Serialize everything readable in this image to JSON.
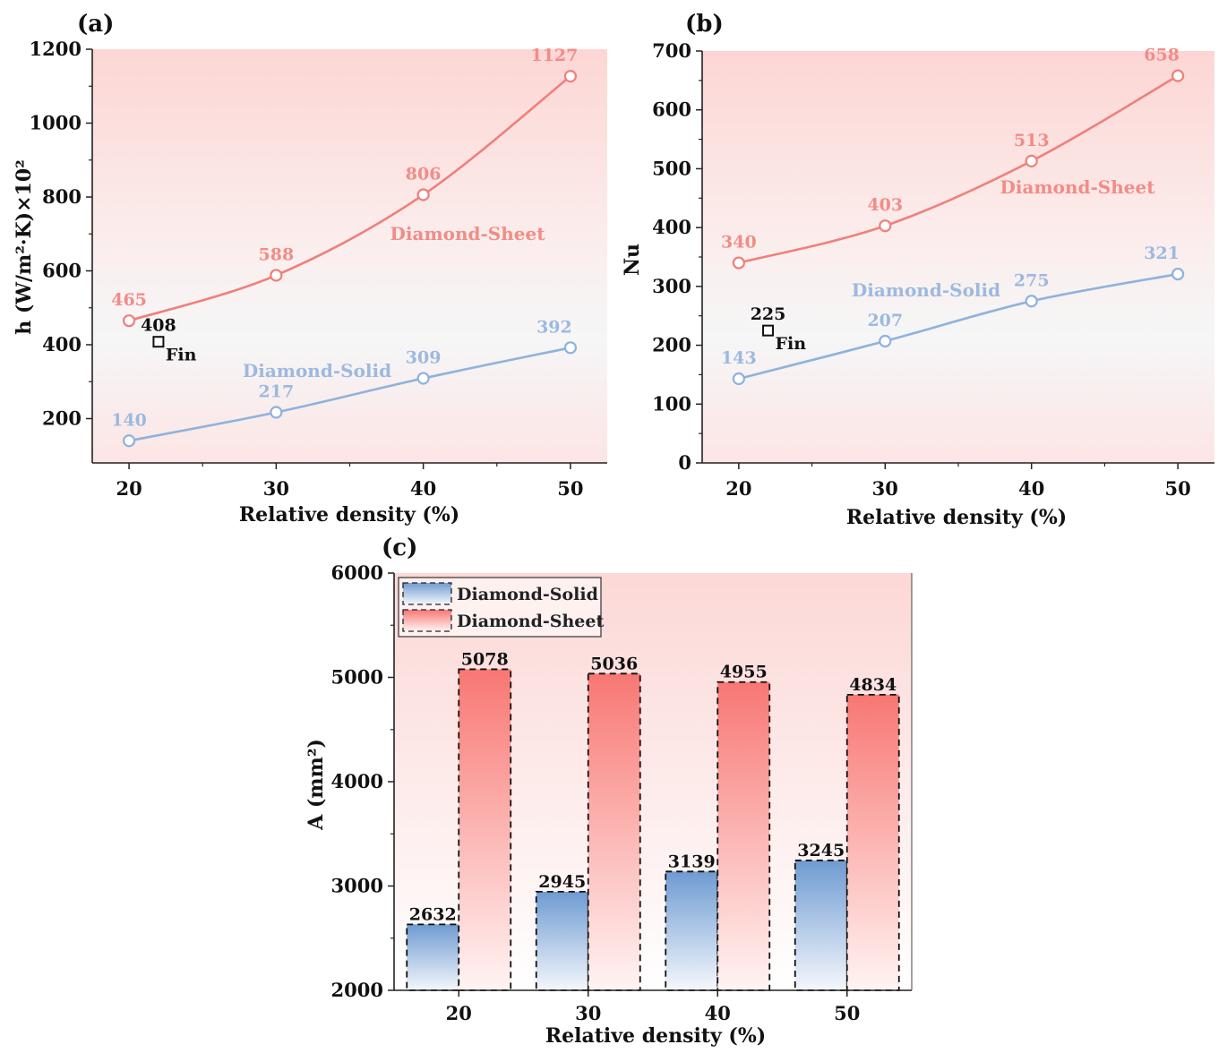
{
  "colors": {
    "sheet": "#F07F7A",
    "sheet_text": "#F28C86",
    "solid": "#8EB2DE",
    "solid_text": "#9CB9E0",
    "fin": "#111111"
  },
  "chart_data": [
    {
      "panel": "(a)",
      "type": "line",
      "x": [
        20,
        30,
        40,
        50
      ],
      "xlim": [
        17.5,
        52.5
      ],
      "ylim": [
        80,
        1200
      ],
      "yticks": [
        200,
        400,
        600,
        800,
        1000,
        1200
      ],
      "xticks": [
        20,
        30,
        40,
        50
      ],
      "xlabel": "Relative density (%)",
      "ylabel": "h (W/m²·K)×10²",
      "series": [
        {
          "name": "Diamond-Sheet",
          "values": [
            465,
            588,
            806,
            1127
          ],
          "labels": [
            "465",
            "588",
            "806",
            "1127"
          ]
        },
        {
          "name": "Diamond-Solid",
          "values": [
            140,
            217,
            309,
            392
          ],
          "labels": [
            "140",
            "217",
            "309",
            "392"
          ]
        }
      ],
      "fin": {
        "x": 22,
        "y": 408,
        "value_label": "408",
        "name": "Fin"
      }
    },
    {
      "panel": "(b)",
      "type": "line",
      "x": [
        20,
        30,
        40,
        50
      ],
      "xlim": [
        17.5,
        52.5
      ],
      "ylim": [
        0,
        700
      ],
      "yticks": [
        0,
        100,
        200,
        300,
        400,
        500,
        600,
        700
      ],
      "xticks": [
        20,
        30,
        40,
        50
      ],
      "xlabel": "Relative density (%)",
      "ylabel": "Nu",
      "series": [
        {
          "name": "Diamond-Sheet",
          "values": [
            340,
            403,
            513,
            658
          ],
          "labels": [
            "340",
            "403",
            "513",
            "658"
          ]
        },
        {
          "name": "Diamond-Solid",
          "values": [
            143,
            207,
            275,
            321
          ],
          "labels": [
            "143",
            "207",
            "275",
            "321"
          ]
        }
      ],
      "fin": {
        "x": 22,
        "y": 225,
        "value_label": "225",
        "name": "Fin"
      }
    },
    {
      "panel": "(c)",
      "type": "bar",
      "categories": [
        "20",
        "30",
        "40",
        "50"
      ],
      "ylim": [
        2000,
        6000
      ],
      "yticks": [
        2000,
        3000,
        4000,
        5000,
        6000
      ],
      "xlabel": "Relative density (%)",
      "ylabel": "A (mm²)",
      "series": [
        {
          "name": "Diamond-Solid",
          "values": [
            2632,
            2945,
            3139,
            3245
          ],
          "labels": [
            "2632",
            "2945",
            "3139",
            "3245"
          ]
        },
        {
          "name": "Diamond-Sheet",
          "values": [
            5078,
            5036,
            4955,
            4834
          ],
          "labels": [
            "5078",
            "5036",
            "4955",
            "4834"
          ]
        }
      ],
      "legend": {
        "position": "top-left",
        "entries": [
          "Diamond-Solid",
          "Diamond-Sheet"
        ]
      }
    }
  ]
}
